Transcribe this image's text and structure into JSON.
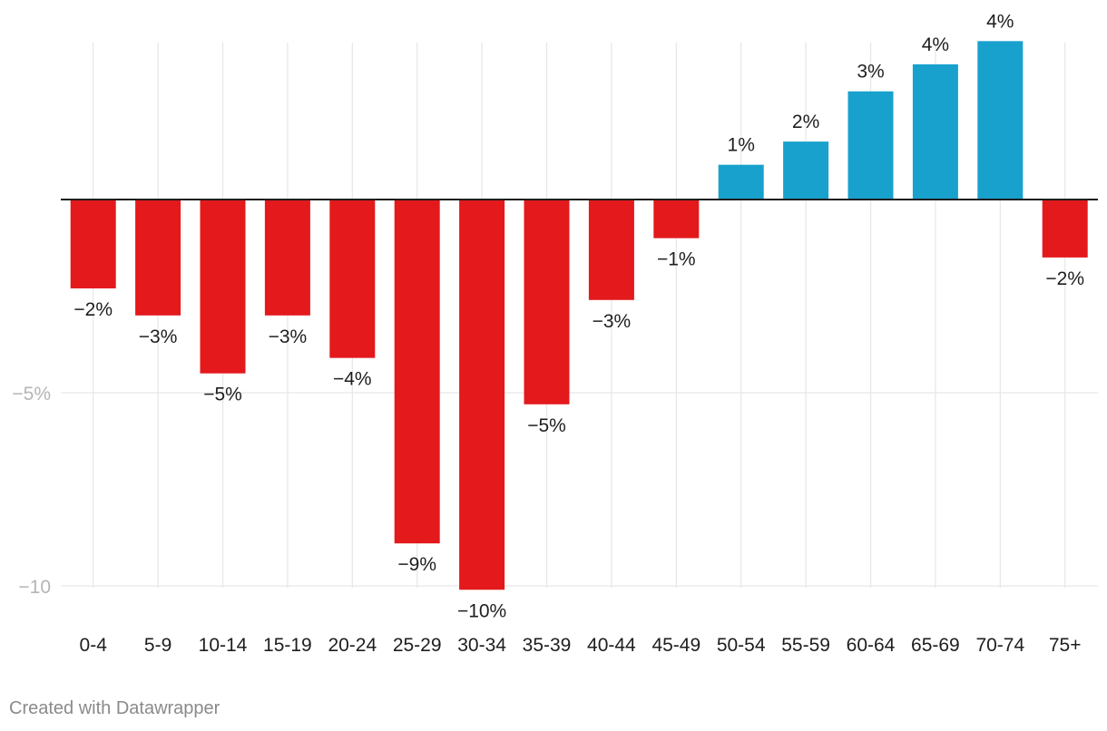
{
  "chart_data": {
    "type": "bar",
    "categories": [
      "0-4",
      "5-9",
      "10-14",
      "15-19",
      "20-24",
      "25-29",
      "30-34",
      "35-39",
      "40-44",
      "45-49",
      "50-54",
      "55-59",
      "60-64",
      "65-69",
      "70-74",
      "75+"
    ],
    "values": [
      -2.3,
      -3.0,
      -4.5,
      -3.0,
      -4.1,
      -8.9,
      -10.1,
      -5.3,
      -2.6,
      -1.0,
      0.9,
      1.5,
      2.8,
      3.5,
      4.1,
      -1.5
    ],
    "value_labels": [
      "−2%",
      "−3%",
      "−5%",
      "−3%",
      "−4%",
      "−9%",
      "−10%",
      "−5%",
      "−3%",
      "−1%",
      "1%",
      "2%",
      "3%",
      "4%",
      "4%",
      "−2%"
    ],
    "y_ticks": [
      {
        "value": -5,
        "label": "−5%"
      },
      {
        "value": -10,
        "label": "−10"
      }
    ],
    "ylim": [
      -10.2,
      4.3
    ],
    "grid": true,
    "colors": {
      "negative": "#e3191c",
      "positive": "#18a1cd",
      "grid": "#e6e6e6",
      "baseline": "#1e1e1e"
    }
  },
  "footer": {
    "credit": "Created with Datawrapper"
  }
}
